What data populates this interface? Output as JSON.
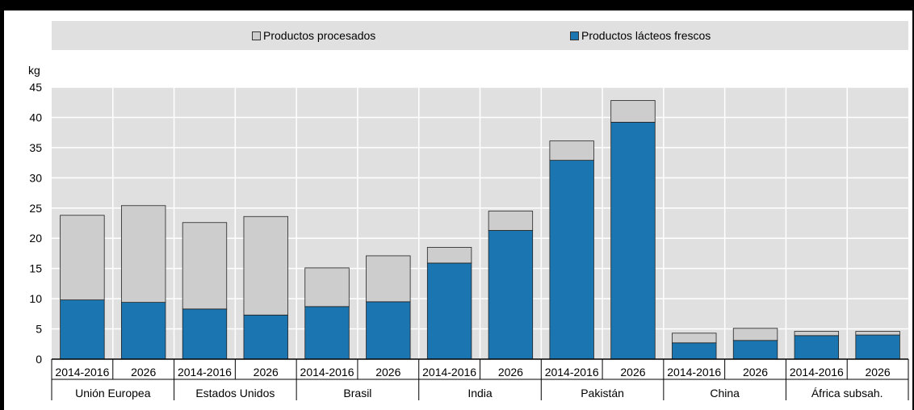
{
  "chart_data": {
    "type": "bar",
    "stacked": true,
    "ylabel": "kg",
    "ylim": [
      0,
      45
    ],
    "yticks": [
      0,
      5,
      10,
      15,
      20,
      25,
      30,
      35,
      40,
      45
    ],
    "grid": true,
    "legend_position": "top",
    "groups": [
      "Unión Europea",
      "Estados Unidos",
      "Brasil",
      "India",
      "Pakistán",
      "China",
      "África subsah."
    ],
    "periods": [
      "2014-2016",
      "2026"
    ],
    "series": [
      {
        "name": "Productos lácteos frescos",
        "color": "#1a75b0",
        "values": [
          9.8,
          9.4,
          8.3,
          7.3,
          8.7,
          9.5,
          15.9,
          21.3,
          32.9,
          39.2,
          2.7,
          3.1,
          3.9,
          4.0
        ]
      },
      {
        "name": "Productos procesados",
        "color": "#cdcdcd",
        "values": [
          14.0,
          16.0,
          14.3,
          16.3,
          6.4,
          7.6,
          2.6,
          3.2,
          3.2,
          3.6,
          1.6,
          2.0,
          0.7,
          0.6
        ]
      }
    ]
  },
  "legend": {
    "processed_label": "Productos procesados",
    "fresh_label": "Productos lácteos frescos"
  }
}
